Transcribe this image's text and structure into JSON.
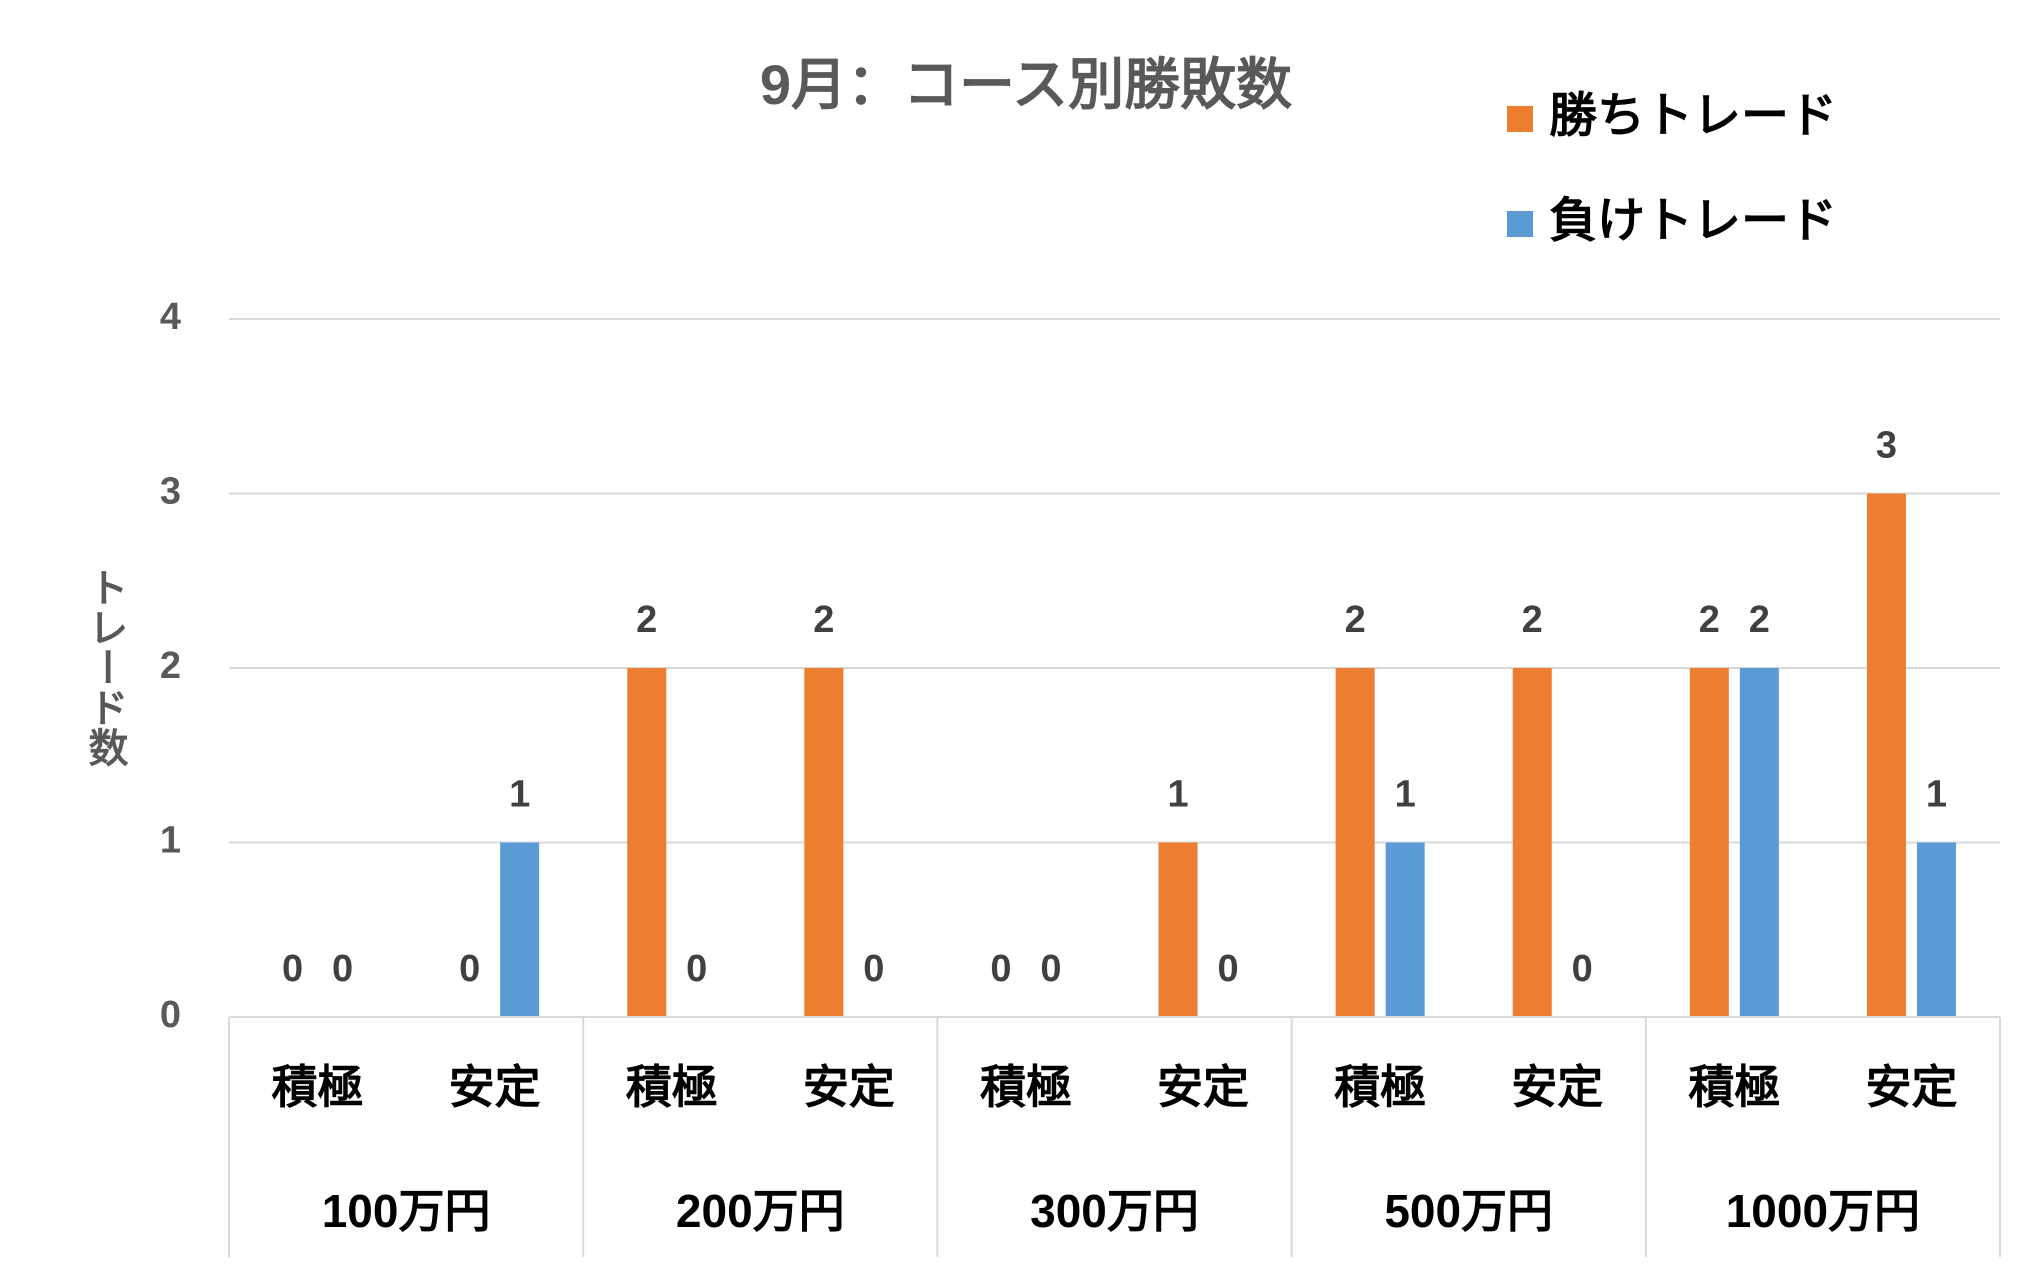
{
  "chart_data": {
    "type": "bar",
    "title": "9月：コース別勝敗数",
    "y_axis_label": "トレード数",
    "categories": [
      "積極",
      "安定",
      "積極",
      "安定",
      "積極",
      "安定",
      "積極",
      "安定",
      "積極",
      "安定"
    ],
    "groups": [
      "100万円",
      "200万円",
      "300万円",
      "500万円",
      "1000万円"
    ],
    "series": [
      {
        "name": "勝ちトレード",
        "color": "#ED7D31",
        "values": [
          0,
          0,
          2,
          2,
          0,
          1,
          2,
          2,
          2,
          3
        ]
      },
      {
        "name": "負けトレード",
        "color": "#5B9BD5",
        "values": [
          0,
          1,
          0,
          0,
          0,
          0,
          1,
          0,
          2,
          1
        ]
      }
    ],
    "ylim": [
      0,
      4
    ],
    "yticks": [
      0,
      1,
      2,
      3,
      4
    ],
    "grid": true,
    "legend": "top-right"
  }
}
